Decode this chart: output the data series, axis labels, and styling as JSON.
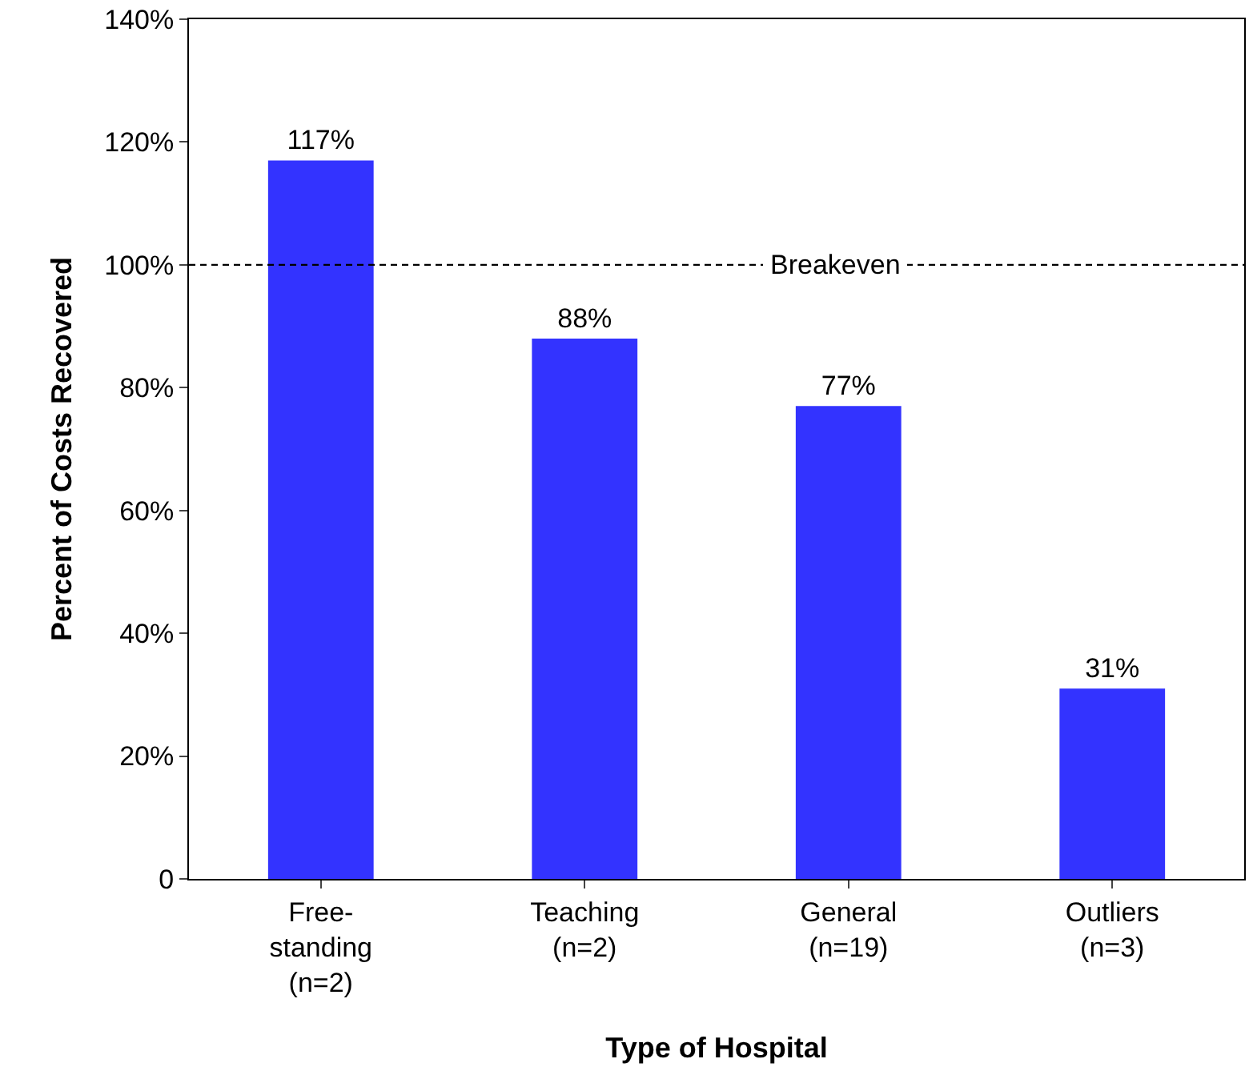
{
  "chart_data": {
    "type": "bar",
    "xlabel": "Type of Hospital",
    "ylabel": "Percent of Costs Recovered",
    "categories": [
      "Free-\nstanding\n(n=2)",
      "Teaching\n(n=2)",
      "General\n(n=19)",
      "Outliers\n(n=3)"
    ],
    "values": [
      117,
      88,
      77,
      31
    ],
    "value_labels": [
      "117%",
      "88%",
      "77%",
      "31%"
    ],
    "color": "#3333ff",
    "ylim": [
      0,
      140
    ],
    "yticks": [
      {
        "value": 0,
        "label": "0"
      },
      {
        "value": 20,
        "label": "20%"
      },
      {
        "value": 40,
        "label": "40%"
      },
      {
        "value": 60,
        "label": "60%"
      },
      {
        "value": 80,
        "label": "80%"
      },
      {
        "value": 100,
        "label": "100%"
      },
      {
        "value": 120,
        "label": "120%"
      },
      {
        "value": 140,
        "label": "140%"
      }
    ],
    "ref_lines": [
      {
        "axis": "y",
        "value": 100,
        "label": "Breakeven",
        "color": "#000000",
        "line_style": "dashed"
      }
    ]
  }
}
